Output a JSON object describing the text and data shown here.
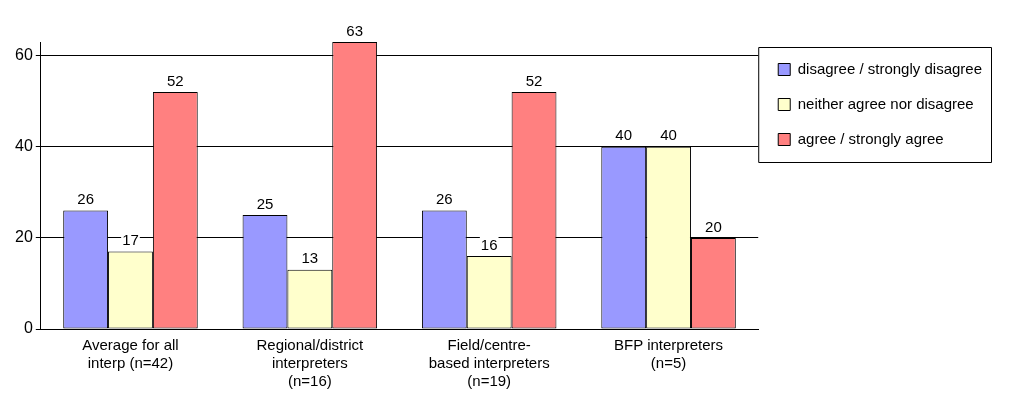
{
  "chart_data": {
    "type": "bar",
    "categories": [
      "Average for all interp (n=42)",
      "Regional/district interpreters (n=16)",
      "Field/centre-based interpreters (n=19)",
      "BFP interpreters (n=5)"
    ],
    "series": [
      {
        "name": "disagree / strongly disagree",
        "color": "#9999ff",
        "values": [
          26,
          25,
          26,
          40
        ]
      },
      {
        "name": "neither agree nor disagree",
        "color": "#ffffcc",
        "values": [
          17,
          13,
          16,
          40
        ]
      },
      {
        "name": "agree / strongly agree",
        "color": "#ff8080",
        "values": [
          52,
          63,
          52,
          20
        ]
      }
    ],
    "ylim": [
      0,
      63
    ],
    "yticks": [
      0,
      20,
      40,
      60
    ],
    "grid": "y",
    "legend": "right",
    "data_labels": true
  }
}
